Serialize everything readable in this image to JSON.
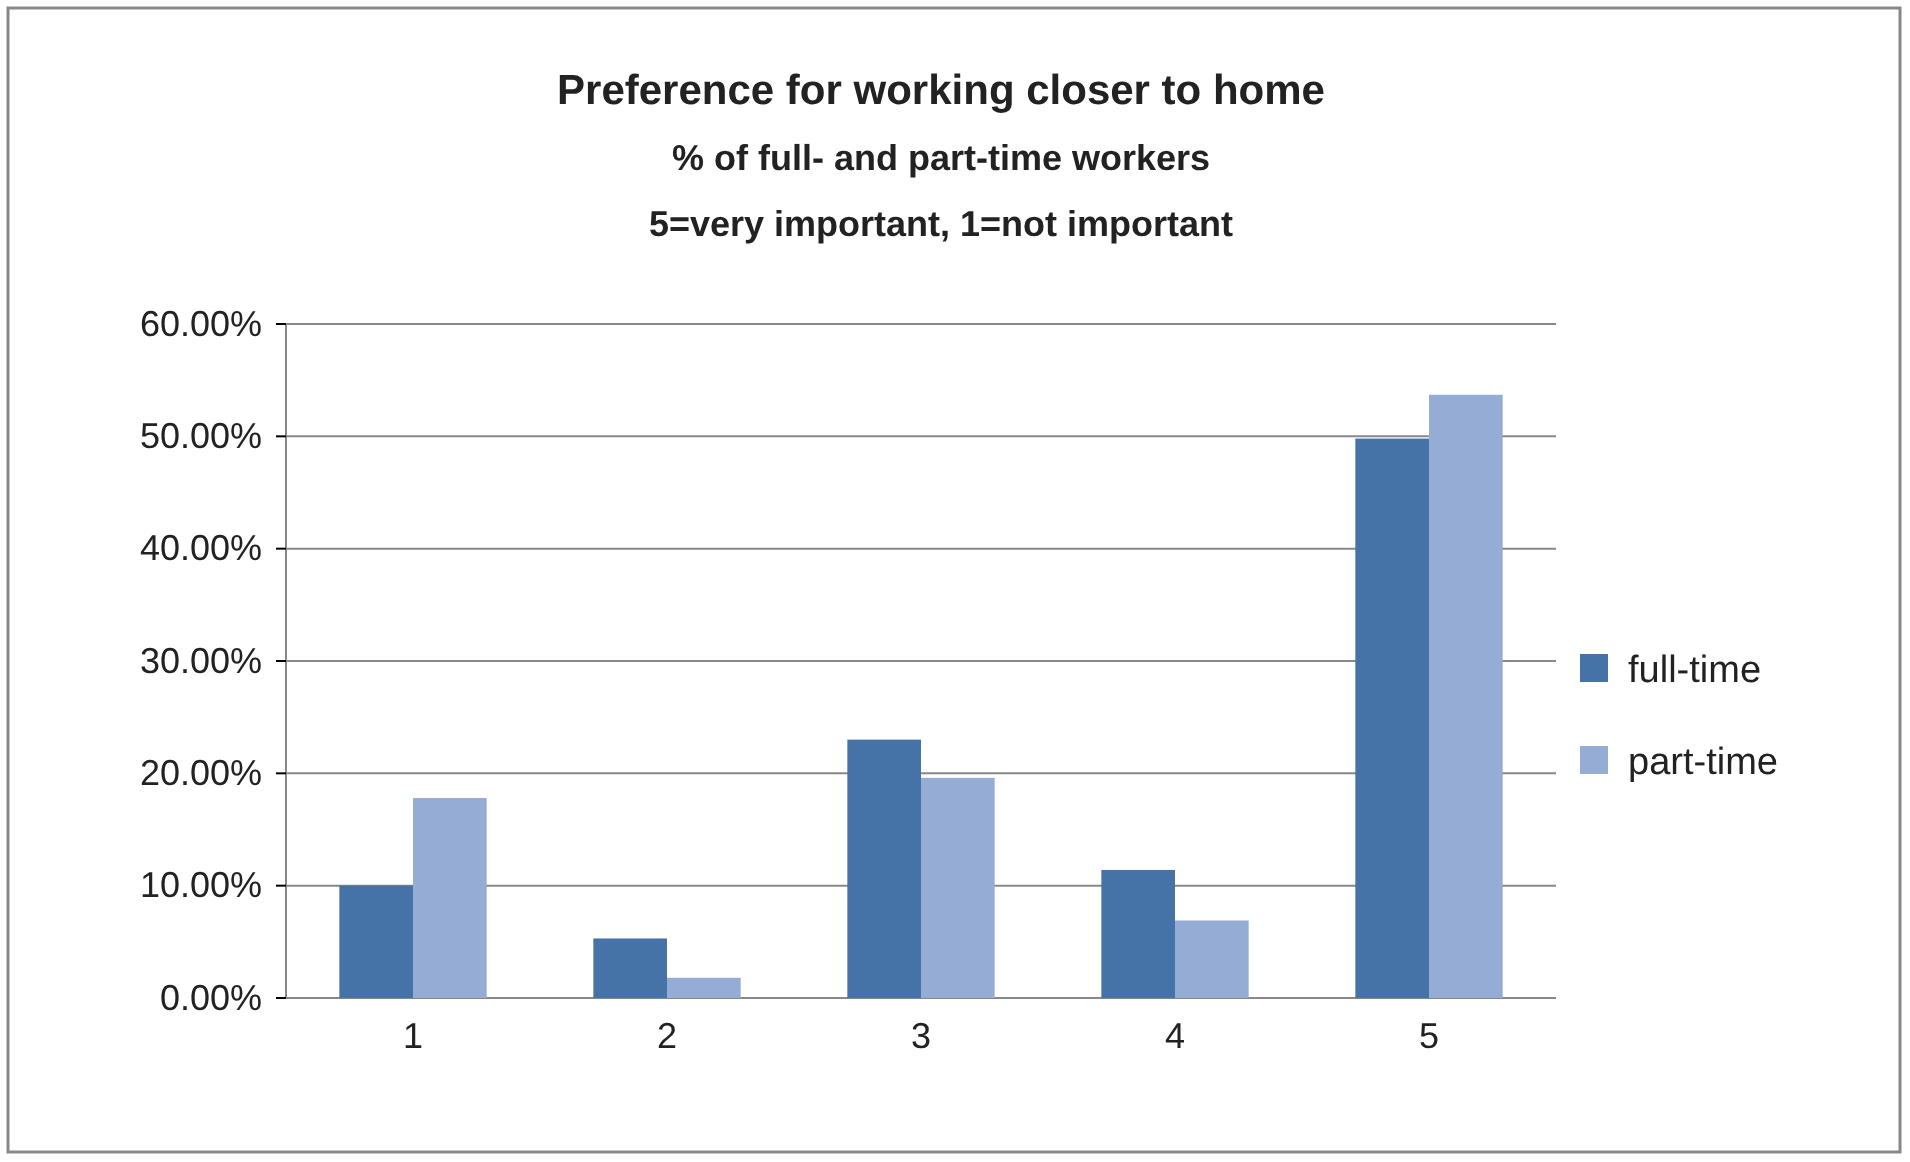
{
  "chart_data": {
    "type": "bar",
    "title": "Preference for working closer to home",
    "subtitle": "% of full- and part-time workers",
    "annotations": [
      "5=very important, 1=not important"
    ],
    "categories": [
      "1",
      "2",
      "3",
      "4",
      "5"
    ],
    "series": [
      {
        "name": "full-time",
        "color": "#4673a7",
        "values": [
          10.0,
          5.3,
          23.0,
          11.4,
          49.8
        ]
      },
      {
        "name": "part-time",
        "color": "#95acd4",
        "values": [
          17.8,
          1.8,
          19.6,
          6.9,
          53.7
        ]
      }
    ],
    "ylim": [
      0,
      60
    ],
    "yticks": [
      {
        "value": 0,
        "label": "0.00%"
      },
      {
        "value": 10,
        "label": "10.00%"
      },
      {
        "value": 20,
        "label": "20.00%"
      },
      {
        "value": 30,
        "label": "30.00%"
      },
      {
        "value": 40,
        "label": "40.00%"
      },
      {
        "value": 50,
        "label": "50.00%"
      },
      {
        "value": 60,
        "label": "60.00%"
      }
    ],
    "grid": "y",
    "legend": "right"
  }
}
